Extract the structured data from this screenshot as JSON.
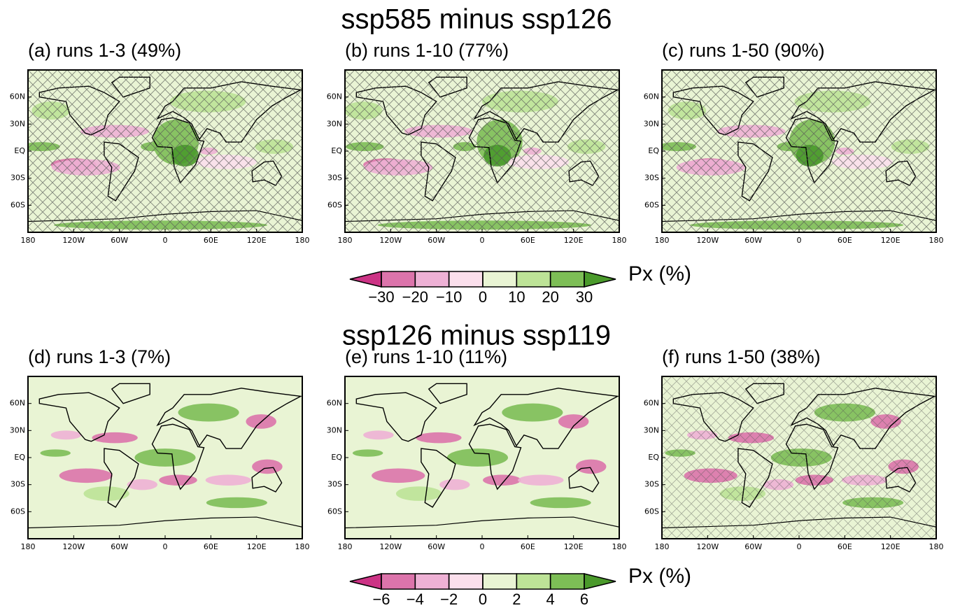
{
  "figure": {
    "sections": [
      {
        "title": "ssp585 minus ssp126",
        "panels": [
          "(a) runs 1-3 (49%)",
          "(b) runs 1-10 (77%)",
          "(c) runs 1-50 (90%)"
        ],
        "colorbar": {
          "label": "Px (%)",
          "ticks": [
            {
              "value": -30,
              "label": "−30"
            },
            {
              "value": -20,
              "label": "−20"
            },
            {
              "value": -10,
              "label": "−10"
            },
            0,
            10,
            20,
            30
          ],
          "colors": [
            "#cc3385",
            "#dc74ab",
            "#eeb1d5",
            "#fbdfec",
            "#e9f4d4",
            "#bde397",
            "#7dbe56",
            "#4a9a2b"
          ]
        }
      },
      {
        "title": "ssp126 minus ssp119",
        "panels": [
          "(d) runs 1-3 (7%)",
          "(e) runs 1-10 (11%)",
          "(f) runs 1-50 (38%)"
        ],
        "colorbar": {
          "label": "Px (%)",
          "ticks": [
            {
              "value": -6,
              "label": "−6"
            },
            {
              "value": -4,
              "label": "−4"
            },
            {
              "value": -2,
              "label": "−2"
            },
            0,
            2,
            4,
            6
          ],
          "colors": [
            "#cc3385",
            "#dc74ab",
            "#eeb1d5",
            "#fbdfec",
            "#e9f4d4",
            "#bde397",
            "#7dbe56",
            "#4a9a2b"
          ]
        }
      }
    ],
    "lat_ticks": [
      "60N",
      "30N",
      "EQ",
      "30S",
      "60S"
    ],
    "lon_ticks": [
      "180",
      "120W",
      "60W",
      "0",
      "60E",
      "120E",
      "180"
    ]
  }
}
